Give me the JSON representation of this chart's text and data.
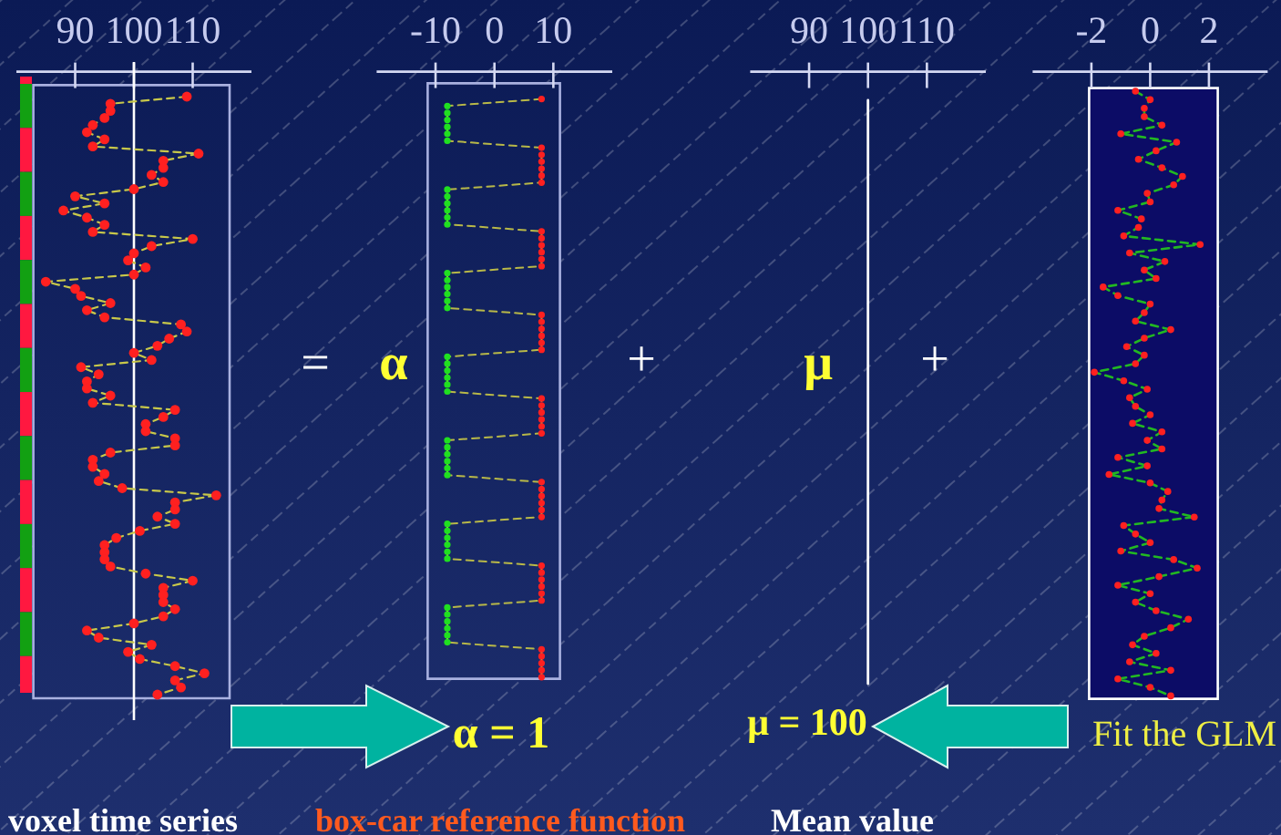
{
  "chart_data": [
    {
      "type": "line",
      "orientation": "horizontal",
      "title": "voxel time series",
      "annotations": [
        "="
      ],
      "categories": [
        null,
        null,
        null,
        null,
        null,
        null,
        null,
        null,
        null,
        null,
        null,
        null,
        null,
        null,
        null,
        null,
        null,
        null,
        null,
        null,
        null,
        null,
        null,
        null,
        null,
        null,
        null,
        null,
        null,
        null,
        null,
        null,
        null,
        null,
        null,
        null,
        null,
        null,
        null,
        null,
        null,
        null,
        null,
        null,
        null,
        null,
        null,
        null,
        null,
        null,
        null,
        null,
        null,
        null,
        null,
        null,
        null,
        null,
        null,
        null,
        null,
        null,
        null,
        null,
        null,
        null,
        null,
        null,
        null,
        null,
        null,
        null,
        null,
        null,
        null,
        null,
        null,
        null,
        null,
        null,
        null,
        null,
        null,
        null,
        null
      ],
      "series": [
        {
          "color": "#c8c84a",
          "colors": [
            "#ff2020",
            "#ff2020",
            "#ff2020",
            "#ff2020",
            "#ff2020",
            "#ff2020",
            "#ff2020",
            "#ff2020",
            "#ff2020",
            "#ff2020",
            "#ff2020",
            "#ff2020",
            "#ff2020",
            "#ff2020",
            "#ff2020",
            "#ff2020",
            "#ff2020",
            "#ff2020",
            "#ff2020",
            "#ff2020",
            "#ff2020",
            "#ff2020",
            "#ff2020",
            "#ff2020",
            "#ff2020",
            "#ff2020",
            "#ff2020",
            "#ff2020",
            "#ff2020",
            "#ff2020",
            "#ff2020",
            "#ff2020",
            "#ff2020",
            "#ff2020",
            "#ff2020",
            "#ff2020",
            "#ff2020",
            "#ff2020",
            "#ff2020",
            "#ff2020",
            "#ff2020",
            "#ff2020",
            "#ff2020",
            "#ff2020",
            "#ff2020",
            "#ff2020",
            "#ff2020",
            "#ff2020",
            "#ff2020",
            "#ff2020",
            "#ff2020",
            "#ff2020",
            "#ff2020",
            "#ff2020",
            "#ff2020",
            "#ff2020",
            "#ff2020",
            "#ff2020",
            "#ff2020",
            "#ff2020",
            "#ff2020",
            "#ff2020",
            "#ff2020",
            "#ff2020",
            "#ff2020",
            "#ff2020",
            "#ff2020",
            "#ff2020",
            "#ff2020",
            "#ff2020",
            "#ff2020",
            "#ff2020",
            "#ff2020",
            "#ff2020",
            "#ff2020",
            "#ff2020",
            "#ff2020",
            "#ff2020",
            "#ff2020",
            "#ff2020",
            "#ff2020",
            "#ff2020",
            "#ff2020",
            "#ff2020",
            "#ff2020"
          ],
          "values": [
            109,
            96,
            96,
            95,
            93,
            92,
            95,
            93,
            111,
            105,
            105,
            103,
            105,
            100,
            90,
            95,
            88,
            92,
            95,
            93,
            110,
            103,
            100,
            99,
            102,
            100,
            85,
            90,
            91,
            96,
            92,
            95,
            108,
            109,
            106,
            104,
            100,
            103,
            91,
            94,
            92,
            92,
            96,
            93,
            107,
            105,
            102,
            102,
            107,
            107,
            96,
            93,
            93,
            95,
            94,
            98,
            114,
            107,
            107,
            104,
            107,
            101,
            97,
            95,
            95,
            95,
            96,
            102,
            110,
            105,
            105,
            105,
            107,
            105,
            100,
            92,
            94,
            103,
            99,
            101,
            107,
            112,
            107,
            108,
            104
          ]
        }
      ],
      "xlim": [
        80,
        120
      ],
      "xticks": [
        90,
        100,
        110
      ],
      "ref_lines": [
        {
          "axis": "x",
          "value": 100,
          "color": "#ffffff"
        }
      ],
      "marker": "circle",
      "line_style": "dashed",
      "tick_labels": "x"
    },
    {
      "type": "line",
      "orientation": "horizontal",
      "title": "box-car reference function",
      "annotations": [
        "α",
        "+",
        "α = 1"
      ],
      "categories": [
        null,
        null,
        null,
        null,
        null,
        null,
        null,
        null,
        null,
        null,
        null,
        null,
        null,
        null,
        null,
        null,
        null,
        null,
        null,
        null,
        null,
        null,
        null,
        null,
        null,
        null,
        null,
        null,
        null,
        null,
        null,
        null,
        null,
        null,
        null,
        null,
        null,
        null,
        null,
        null,
        null,
        null,
        null,
        null,
        null,
        null,
        null,
        null,
        null,
        null,
        null,
        null,
        null,
        null,
        null,
        null,
        null,
        null,
        null,
        null,
        null,
        null,
        null,
        null,
        null,
        null,
        null,
        null,
        null,
        null,
        null,
        null,
        null,
        null,
        null,
        null,
        null,
        null,
        null,
        null,
        null,
        null,
        null,
        null
      ],
      "series": [
        {
          "color": "#b8b848",
          "colors": [
            "#ff2020",
            "#20e020",
            "#20e020",
            "#20e020",
            "#20e020",
            "#20e020",
            "#20e020",
            "#ff2020",
            "#ff2020",
            "#ff2020",
            "#ff2020",
            "#ff2020",
            "#ff2020",
            "#20e020",
            "#20e020",
            "#20e020",
            "#20e020",
            "#20e020",
            "#20e020",
            "#ff2020",
            "#ff2020",
            "#ff2020",
            "#ff2020",
            "#ff2020",
            "#ff2020",
            "#20e020",
            "#20e020",
            "#20e020",
            "#20e020",
            "#20e020",
            "#20e020",
            "#ff2020",
            "#ff2020",
            "#ff2020",
            "#ff2020",
            "#ff2020",
            "#ff2020",
            "#20e020",
            "#20e020",
            "#20e020",
            "#20e020",
            "#20e020",
            "#20e020",
            "#ff2020",
            "#ff2020",
            "#ff2020",
            "#ff2020",
            "#ff2020",
            "#ff2020",
            "#20e020",
            "#20e020",
            "#20e020",
            "#20e020",
            "#20e020",
            "#20e020",
            "#ff2020",
            "#ff2020",
            "#ff2020",
            "#ff2020",
            "#ff2020",
            "#ff2020",
            "#20e020",
            "#20e020",
            "#20e020",
            "#20e020",
            "#20e020",
            "#20e020",
            "#ff2020",
            "#ff2020",
            "#ff2020",
            "#ff2020",
            "#ff2020",
            "#ff2020",
            "#20e020",
            "#20e020",
            "#20e020",
            "#20e020",
            "#20e020",
            "#20e020",
            "#ff2020",
            "#ff2020",
            "#ff2020",
            "#ff2020",
            "#ff2020"
          ],
          "values": [
            8,
            -8,
            -8,
            -8,
            -8,
            -8,
            -8,
            8,
            8,
            8,
            8,
            8,
            8,
            -8,
            -8,
            -8,
            -8,
            -8,
            -8,
            8,
            8,
            8,
            8,
            8,
            8,
            -8,
            -8,
            -8,
            -8,
            -8,
            -8,
            8,
            8,
            8,
            8,
            8,
            8,
            -8,
            -8,
            -8,
            -8,
            -8,
            -8,
            8,
            8,
            8,
            8,
            8,
            8,
            -8,
            -8,
            -8,
            -8,
            -8,
            -8,
            8,
            8,
            8,
            8,
            8,
            8,
            -8,
            -8,
            -8,
            -8,
            -8,
            -8,
            8,
            8,
            8,
            8,
            8,
            8,
            -8,
            -8,
            -8,
            -8,
            -8,
            -8,
            8,
            8,
            8,
            8,
            8
          ]
        }
      ],
      "xlim": [
        -20,
        20
      ],
      "xticks": [
        -10,
        0,
        10
      ],
      "marker": "circle",
      "line_style": "dashed",
      "tick_labels": "x"
    },
    {
      "type": "line",
      "orientation": "horizontal",
      "title": "Mean value",
      "annotations": [
        "μ",
        "+",
        "μ = 100"
      ],
      "categories": [
        null,
        null,
        null,
        null,
        null
      ],
      "series": [
        {
          "color": "#ffffff",
          "values": [
            100,
            100,
            100,
            100,
            100
          ]
        }
      ],
      "xlim": [
        80,
        120
      ],
      "xticks": [
        90,
        100,
        110
      ],
      "line_style": "solid",
      "tick_labels": "x"
    },
    {
      "type": "line",
      "orientation": "horizontal",
      "annotations": [
        "Fit the GLM"
      ],
      "categories": [
        null,
        null,
        null,
        null,
        null,
        null,
        null,
        null,
        null,
        null,
        null,
        null,
        null,
        null,
        null,
        null,
        null,
        null,
        null,
        null,
        null,
        null,
        null,
        null,
        null,
        null,
        null,
        null,
        null,
        null,
        null,
        null,
        null,
        null,
        null,
        null,
        null,
        null,
        null,
        null,
        null,
        null,
        null,
        null,
        null,
        null,
        null,
        null,
        null,
        null,
        null,
        null,
        null,
        null,
        null,
        null,
        null,
        null,
        null,
        null,
        null,
        null,
        null,
        null,
        null,
        null,
        null,
        null,
        null,
        null,
        null,
        null
      ],
      "series": [
        {
          "color": "#22b822",
          "colors": [
            "#ff2020",
            "#ff2020",
            "#ff2020",
            "#ff2020",
            "#ff2020",
            "#ff2020",
            "#ff2020",
            "#ff2020",
            "#ff2020",
            "#ff2020",
            "#ff2020",
            "#ff2020",
            "#ff2020",
            "#ff2020",
            "#ff2020",
            "#ff2020",
            "#ff2020",
            "#ff2020",
            "#ff2020",
            "#ff2020",
            "#ff2020",
            "#ff2020",
            "#ff2020",
            "#ff2020",
            "#ff2020",
            "#ff2020",
            "#ff2020",
            "#ff2020",
            "#ff2020",
            "#ff2020",
            "#ff2020",
            "#ff2020",
            "#ff2020",
            "#ff2020",
            "#ff2020",
            "#ff2020",
            "#ff2020",
            "#ff2020",
            "#ff2020",
            "#ff2020",
            "#ff2020",
            "#ff2020",
            "#ff2020",
            "#ff2020",
            "#ff2020",
            "#ff2020",
            "#ff2020",
            "#ff2020",
            "#ff2020",
            "#ff2020",
            "#ff2020",
            "#ff2020",
            "#ff2020",
            "#ff2020",
            "#ff2020",
            "#ff2020",
            "#ff2020",
            "#ff2020",
            "#ff2020",
            "#ff2020",
            "#ff2020",
            "#ff2020",
            "#ff2020",
            "#ff2020",
            "#ff2020",
            "#ff2020",
            "#ff2020",
            "#ff2020",
            "#ff2020",
            "#ff2020",
            "#ff2020",
            "#ff2020"
          ],
          "values": [
            -0.5,
            0,
            -0.2,
            -0.2,
            0.4,
            -1.0,
            0.9,
            0.2,
            -0.4,
            0.4,
            1.1,
            0.8,
            -0.1,
            0,
            -1.1,
            -0.3,
            -0.4,
            -0.9,
            1.7,
            -0.7,
            0.5,
            -0.2,
            0.2,
            -1.6,
            -1.1,
            0,
            -0.2,
            -0.5,
            0.7,
            -0.2,
            -0.8,
            -0.2,
            -0.5,
            -1.9,
            -0.9,
            -0.1,
            -0.7,
            -0.5,
            0,
            -0.6,
            0.4,
            -0.1,
            0.4,
            -1.1,
            -0.1,
            -1.4,
            0,
            0.6,
            0.4,
            0.3,
            1.5,
            -0.9,
            -0.5,
            0,
            -1.0,
            0.8,
            1.6,
            0.3,
            -1.1,
            0,
            -0.5,
            0.2,
            1.3,
            0.7,
            -0.2,
            -0.6,
            0.2,
            -0.7,
            0.7,
            -1.1,
            0,
            0.7
          ]
        }
      ],
      "xlim": [
        -4,
        4
      ],
      "xticks": [
        -2,
        0,
        2
      ],
      "marker": "circle",
      "line_style": "dashed",
      "tick_labels": "x"
    }
  ]
}
